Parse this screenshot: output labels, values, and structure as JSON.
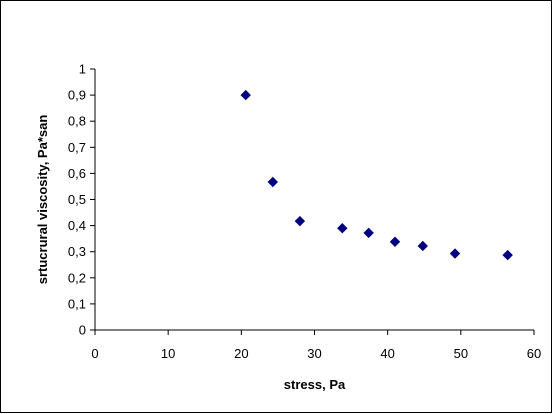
{
  "chart_data": {
    "type": "scatter",
    "title": "",
    "xlabel": "stress, Pa",
    "ylabel": "srtucrural viscosity, Pa*san",
    "xlim": [
      0,
      60
    ],
    "ylim": [
      0,
      1
    ],
    "x_ticks": [
      "0",
      "10",
      "20",
      "30",
      "40",
      "50",
      "60"
    ],
    "y_ticks": [
      "0",
      "0,1",
      "0,2",
      "0,3",
      "0,4",
      "0,5",
      "0,6",
      "0,7",
      "0,8",
      "0,9",
      "1"
    ],
    "grid": false,
    "legend": "none",
    "marker": "diamond",
    "marker_color": "#000080",
    "series": [
      {
        "x": [
          20.6,
          24.3,
          28.0,
          33.8,
          37.4,
          41.0,
          44.8,
          49.2,
          56.4
        ],
        "y": [
          0.9,
          0.567,
          0.417,
          0.39,
          0.372,
          0.338,
          0.322,
          0.293,
          0.287
        ]
      }
    ]
  }
}
